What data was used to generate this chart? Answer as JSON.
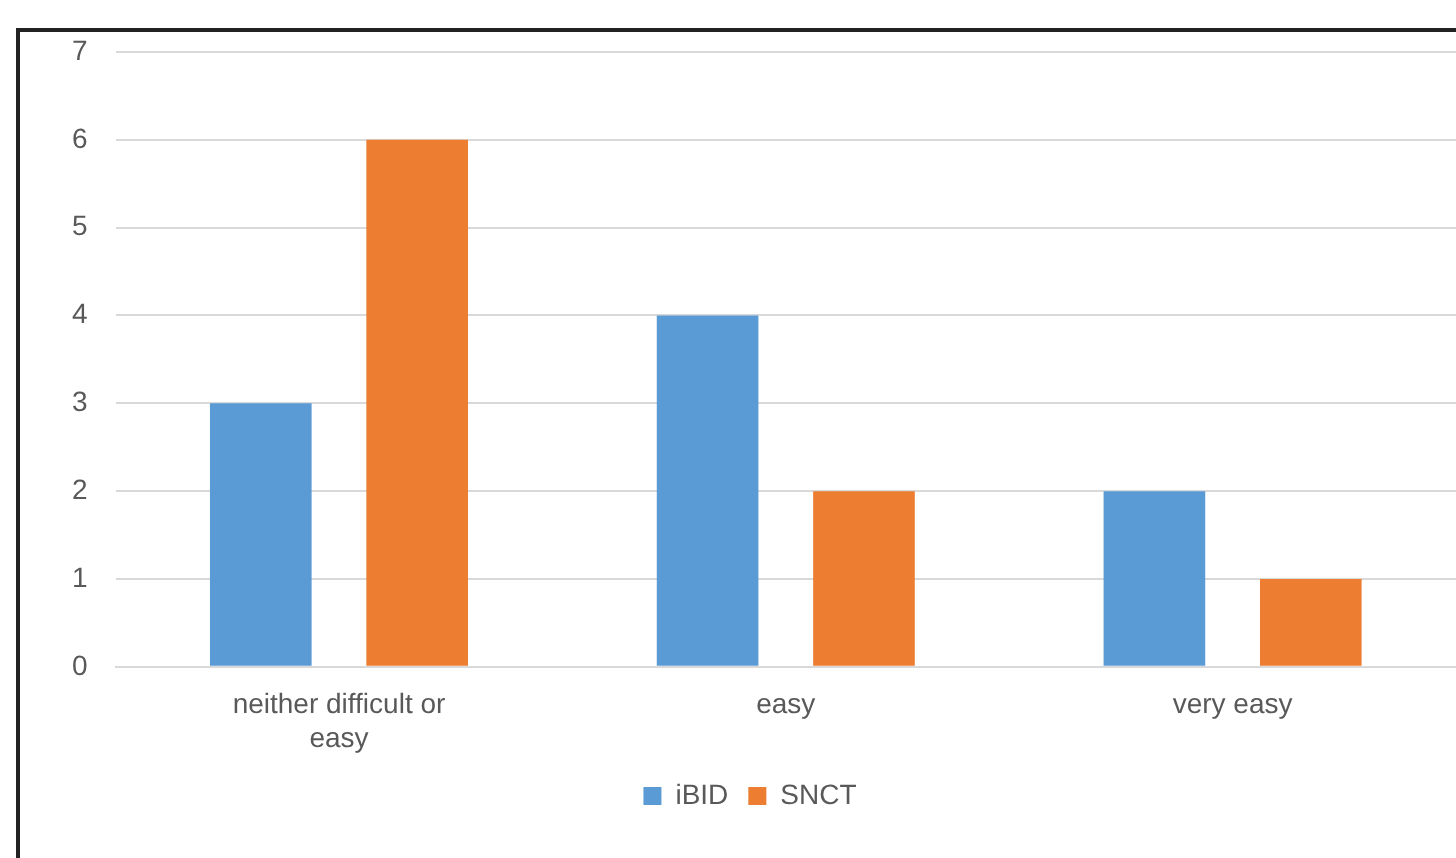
{
  "chart_data": {
    "type": "bar",
    "categories": [
      "neither difficult or easy",
      "easy",
      "very easy"
    ],
    "series": [
      {
        "name": "iBID",
        "color": "#5b9bd5",
        "values": [
          3,
          4,
          2
        ]
      },
      {
        "name": "SNCT",
        "color": "#ed7d31",
        "values": [
          6,
          2,
          1
        ]
      }
    ],
    "ylim": [
      0,
      7
    ],
    "yticks": [
      0,
      1,
      2,
      3,
      4,
      5,
      6,
      7
    ],
    "grid": "y",
    "legend": "bottom"
  }
}
